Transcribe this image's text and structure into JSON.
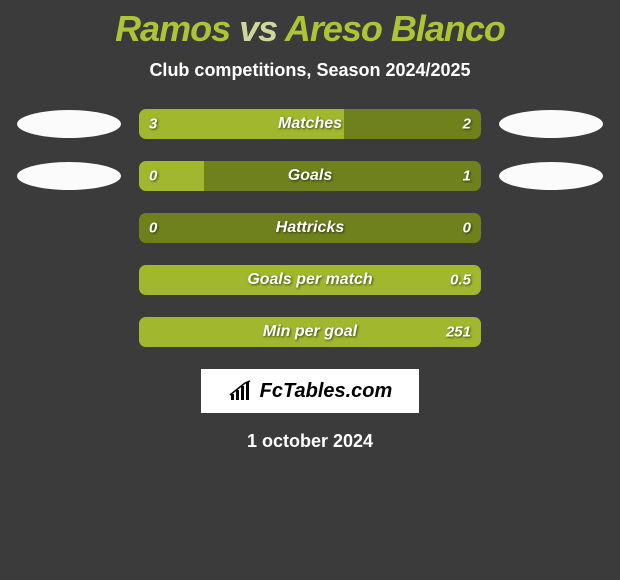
{
  "title": {
    "player1": "Ramos",
    "vs": "vs",
    "player2": "Areso Blanco"
  },
  "subtitle": "Club competitions, Season 2024/2025",
  "colors": {
    "background": "#3b3b3b",
    "bar_base": "#6f811c",
    "bar_fill": "#a1b72e",
    "ellipse": "#fbfbfb",
    "title_main": "#adc435",
    "title_vs": "#cdd99a",
    "text": "#ffffff"
  },
  "stats": [
    {
      "label": "Matches",
      "left_val": "3",
      "right_val": "2",
      "left_pct": 60,
      "right_pct": 40,
      "show_ellipses": true
    },
    {
      "label": "Goals",
      "left_val": "0",
      "right_val": "1",
      "left_pct": 19,
      "right_pct": 81,
      "show_ellipses": true
    },
    {
      "label": "Hattricks",
      "left_val": "0",
      "right_val": "0",
      "left_pct": 0,
      "right_pct": 0,
      "show_ellipses": false
    },
    {
      "label": "Goals per match",
      "left_val": "",
      "right_val": "0.5",
      "left_pct": 0,
      "right_pct": 100,
      "show_ellipses": false
    },
    {
      "label": "Min per goal",
      "left_val": "",
      "right_val": "251",
      "left_pct": 0,
      "right_pct": 100,
      "show_ellipses": false
    }
  ],
  "logo_text": "FcTables.com",
  "date": "1 october 2024"
}
